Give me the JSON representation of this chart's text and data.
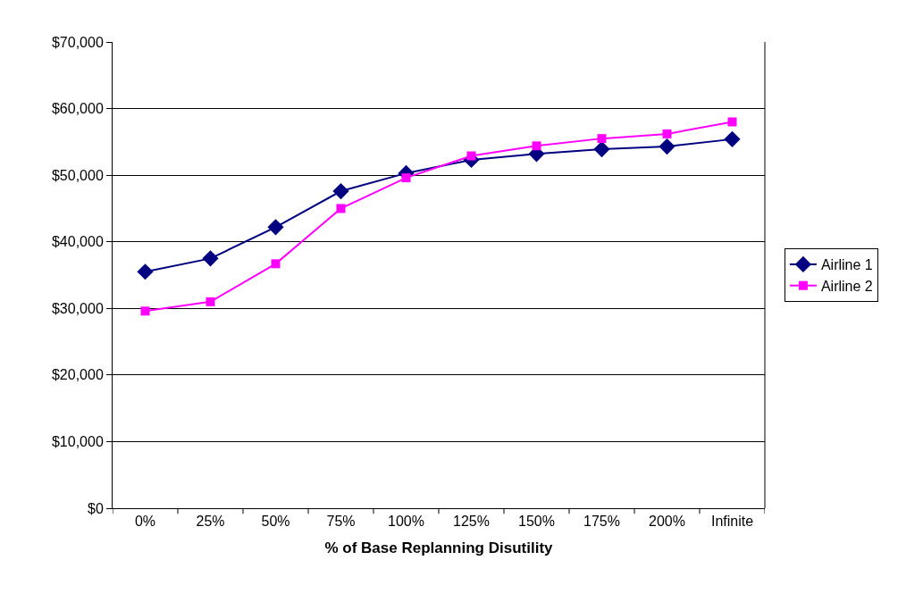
{
  "chart_data": {
    "type": "line",
    "xlabel": "% of Base Replanning Disutility",
    "categories": [
      "0%",
      "25%",
      "50%",
      "75%",
      "100%",
      "125%",
      "150%",
      "175%",
      "200%",
      "Infinite"
    ],
    "series": [
      {
        "name": "Airline 1",
        "color": "#000080",
        "marker": "diamond",
        "values": [
          35500,
          37500,
          42200,
          47600,
          50300,
          52300,
          53200,
          53900,
          54300,
          55400
        ]
      },
      {
        "name": "Airline 2",
        "color": "#ff00ff",
        "marker": "square",
        "values": [
          29600,
          31000,
          36700,
          45000,
          49600,
          52900,
          54400,
          55500,
          56200,
          58000
        ]
      }
    ],
    "ylim": [
      0,
      70000
    ],
    "yticks": [
      {
        "value": 0,
        "label": "$0"
      },
      {
        "value": 10000,
        "label": "$10,000"
      },
      {
        "value": 20000,
        "label": "$20,000"
      },
      {
        "value": 30000,
        "label": "$30,000"
      },
      {
        "value": 40000,
        "label": "$40,000"
      },
      {
        "value": 50000,
        "label": "$50,000"
      },
      {
        "value": 60000,
        "label": "$60,000"
      },
      {
        "value": 70000,
        "label": "$70,000"
      }
    ],
    "grid": "y",
    "legend": "right",
    "line_style": "solid"
  }
}
